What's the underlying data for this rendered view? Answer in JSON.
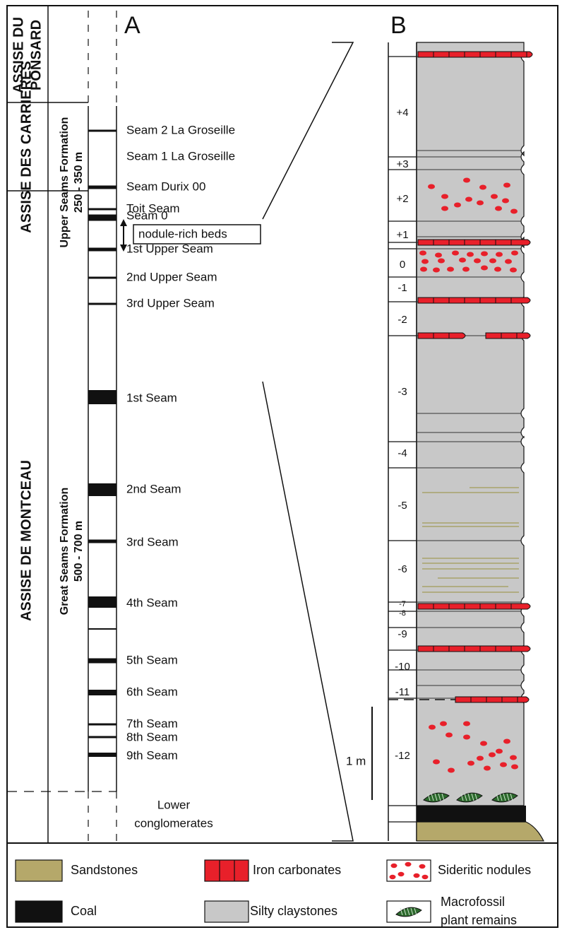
{
  "panel_a": {
    "label": "A",
    "assises": [
      [
        "ASSISE DU",
        "PONSARD"
      ],
      [
        "ASSISE DES CARRIERES"
      ],
      [
        "ASSISE DE MONTCEAU"
      ]
    ],
    "formations": [
      {
        "name": "Upper Seams Formation",
        "thickness": "250 - 350 m"
      },
      {
        "name": "Great Seams Formation",
        "thickness": "500 - 700 m"
      }
    ],
    "seams": [
      "Seam 2 La Groseille",
      "Seam 1 La Groseille",
      "Seam Durix 00",
      "Seam 0",
      "1st Upper Seam",
      "2nd Upper Seam",
      "3rd Upper Seam",
      "Toit Seam",
      "1st Seam",
      "2nd Seam",
      "3rd Seam",
      "4th Seam",
      "5th Seam",
      "6th Seam",
      "7th Seam",
      "8th Seam",
      "9th Seam"
    ],
    "nodule_beds": "nodule-rich beds",
    "base": [
      "Lower",
      "conglomerates"
    ]
  },
  "panel_b": {
    "label": "B",
    "beds": [
      "+4",
      "+3",
      "+2",
      "+1",
      "0",
      "-1",
      "-2",
      "-3",
      "-4",
      "-5",
      "-6",
      "-7",
      "-8",
      "-9",
      "-10",
      "-11",
      "-12"
    ],
    "scale": "1 m"
  },
  "legend": [
    [
      "Sandstones"
    ],
    [
      "Iron carbonates"
    ],
    [
      "Sideritic nodules"
    ],
    [
      "Coal"
    ],
    [
      "Silty claystones"
    ],
    [
      "Macrofossil",
      "plant remains"
    ]
  ]
}
